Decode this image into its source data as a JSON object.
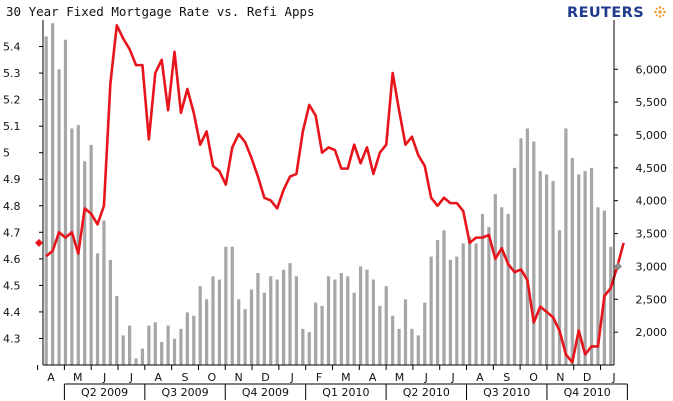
{
  "header": {
    "title": "30 Year Fixed Mortgage Rate vs. Refi Apps",
    "logo": "REUTERS"
  },
  "colors": {
    "rate_line": "#e8141b",
    "bars": "#a6a6a6",
    "axis": "#000000",
    "logo": "#1f3b8e"
  },
  "chart_data": {
    "type": "bar+line",
    "title": "30 Year Fixed Mortgage Rate vs. Refi Apps",
    "xlabel": "",
    "left_axis": {
      "ylim": [
        4.2,
        5.5
      ],
      "ticks": [
        "4.3",
        "4.4",
        "4.5",
        "4.6",
        "4.7",
        "4.8",
        "4.9",
        "5",
        "5.1",
        "5.2",
        "5.3",
        "5.4"
      ],
      "current_marker": 4.66
    },
    "right_axis": {
      "ylim": [
        1500,
        6750
      ],
      "ticks": [
        "2,000",
        "2,500",
        "3,000",
        "3,500",
        "4,000",
        "4,500",
        "5,000",
        "5,500",
        "6,000"
      ],
      "current_marker": 3000
    },
    "month_labels": [
      "A",
      "M",
      "J",
      "J",
      "A",
      "S",
      "O",
      "N",
      "D",
      "J",
      "F",
      "M",
      "A",
      "M",
      "J",
      "J",
      "A",
      "S",
      "O",
      "N",
      "D",
      "J"
    ],
    "quarter_labels": [
      "Q2 2009",
      "Q3 2009",
      "Q4 2009",
      "Q1 2010",
      "Q2 2010",
      "Q3 2010",
      "Q4 2010"
    ],
    "series": [
      {
        "name": "Refi Apps",
        "type": "bar",
        "values": [
          6500,
          6700,
          6000,
          6450,
          5100,
          5150,
          4600,
          4850,
          3200,
          3700,
          3100,
          2550,
          1950,
          2100,
          1600,
          1750,
          2100,
          2150,
          1850,
          2100,
          1900,
          2050,
          2300,
          2250,
          2700,
          2500,
          2850,
          2800,
          3300,
          3300,
          2500,
          2350,
          2650,
          2900,
          2600,
          2850,
          2800,
          2950,
          3050,
          2850,
          2050,
          2000,
          2450,
          2400,
          2850,
          2800,
          2900,
          2850,
          2600,
          3000,
          2950,
          2800,
          2400,
          2700,
          2250,
          2050,
          2500,
          2050,
          1950,
          2450,
          3150,
          3400,
          3550,
          3100,
          3150,
          3350,
          3450,
          3350,
          3800,
          3600,
          4100,
          3900,
          3800,
          4500,
          4950,
          5100,
          4900,
          4450,
          4400,
          4300,
          3550,
          5100,
          4650,
          4400,
          4450,
          4500,
          3900,
          3850,
          3300
        ]
      },
      {
        "name": "30 Year Fixed Mortgage Rate",
        "type": "line",
        "values": [
          4.61,
          4.63,
          4.7,
          4.68,
          4.7,
          4.62,
          4.79,
          4.77,
          4.73,
          4.8,
          5.26,
          5.48,
          5.43,
          5.39,
          5.33,
          5.33,
          5.05,
          5.3,
          5.35,
          5.16,
          5.38,
          5.15,
          5.24,
          5.15,
          5.03,
          5.08,
          4.95,
          4.93,
          4.88,
          5.02,
          5.07,
          5.04,
          4.98,
          4.91,
          4.83,
          4.82,
          4.79,
          4.86,
          4.91,
          4.92,
          5.08,
          5.18,
          5.14,
          5.0,
          5.02,
          5.01,
          4.94,
          4.94,
          5.03,
          4.96,
          5.02,
          4.92,
          5.0,
          5.03,
          5.3,
          5.16,
          5.03,
          5.06,
          4.99,
          4.95,
          4.83,
          4.8,
          4.83,
          4.81,
          4.81,
          4.78,
          4.66,
          4.68,
          4.68,
          4.69,
          4.6,
          4.64,
          4.58,
          4.55,
          4.56,
          4.52,
          4.36,
          4.42,
          4.4,
          4.38,
          4.33,
          4.24,
          4.21,
          4.33,
          4.24,
          4.27,
          4.27,
          4.46,
          4.49,
          4.57,
          4.66
        ]
      }
    ]
  }
}
